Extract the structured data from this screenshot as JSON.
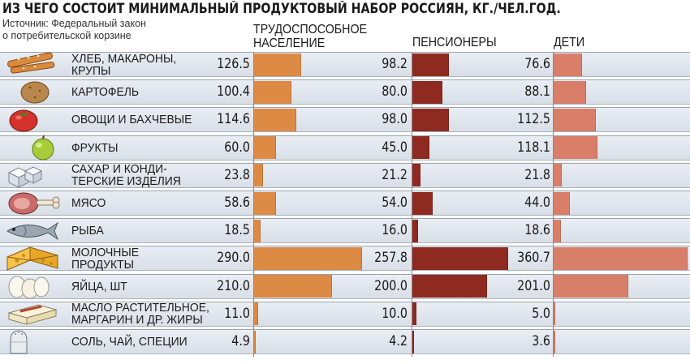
{
  "title": "ИЗ ЧЕГО СОСТОИТ МИНИМАЛЬНЫЙ ПРОДУКТОВЫЙ НАБОР РОССИЯН, КГ./ЧЕЛ.ГОД.",
  "source": "Источник: Федеральный закон\nо потребительской корзине",
  "colors": {
    "working": "#dd8a45",
    "pensioners": "#8e2a20",
    "children": "#d97f69"
  },
  "chart_data": {
    "type": "bar",
    "title": "ИЗ ЧЕГО СОСТОИТ МИНИМАЛЬНЫЙ ПРОДУКТОВЫЙ НАБОР РОССИЯН, КГ./ЧЕЛ.ГОД.",
    "xlabel": "",
    "ylabel": "",
    "categories": [
      "ХЛЕБ, МАКАРОНЫ,\nКРУПЫ",
      "КАРТОФЕЛЬ",
      "ОВОЩИ И БАХЧЕВЫЕ",
      "ФРУКТЫ",
      "САХАР И КОНДИ-\nТЕРСКИЕ ИЗДЕЛИЯ",
      "МЯСО",
      "РЫБА",
      "МОЛОЧНЫЕ\nПРОДУКТЫ",
      "ЯЙЦА, ШТ",
      "МАСЛО РАСТИТЕЛЬНОЕ,\nМАРГАРИН И ДР. ЖИРЫ",
      "СОЛЬ, ЧАЙ, СПЕЦИИ"
    ],
    "icons": [
      "bread-icon",
      "potato-icon",
      "tomato-icon",
      "apple-icon",
      "sugar-icon",
      "meat-icon",
      "fish-icon",
      "cheese-icon",
      "eggs-icon",
      "butter-icon",
      "salt-icon"
    ],
    "series": [
      {
        "name": "ТРУДОСПОСОБНОЕ\nНАСЕЛЕНИЕ",
        "key": "working",
        "values": [
          126.5,
          100.4,
          114.6,
          60.0,
          23.8,
          58.6,
          18.5,
          290.0,
          210.0,
          11.0,
          4.9
        ],
        "labels": [
          "126.5",
          "100.4",
          "114.6",
          "60.0",
          "23.8",
          "58.6",
          "18.5",
          "290.0",
          "210.0",
          "11.0",
          "4.9"
        ]
      },
      {
        "name": "ПЕНСИОНЕРЫ",
        "key": "pensioners",
        "values": [
          98.2,
          80.0,
          98.0,
          45.0,
          21.2,
          54.0,
          16.0,
          257.8,
          200.0,
          10.0,
          4.2
        ],
        "labels": [
          "98.2",
          "80.0",
          "98.0",
          "45.0",
          "21.2",
          "54.0",
          "16.0",
          "257.8",
          "200.0",
          "10.0",
          "4.2"
        ]
      },
      {
        "name": "ДЕТИ",
        "key": "children",
        "values": [
          76.6,
          88.1,
          112.5,
          118.1,
          21.8,
          44.0,
          18.6,
          360.7,
          201.0,
          5.0,
          3.6
        ],
        "labels": [
          "76.6",
          "88.1",
          "112.5",
          "118.1",
          "21.8",
          "44.0",
          "18.6",
          "360.7",
          "201.0",
          "5.0",
          "3.6"
        ]
      }
    ],
    "xlim": [
      0,
      360.7
    ]
  }
}
